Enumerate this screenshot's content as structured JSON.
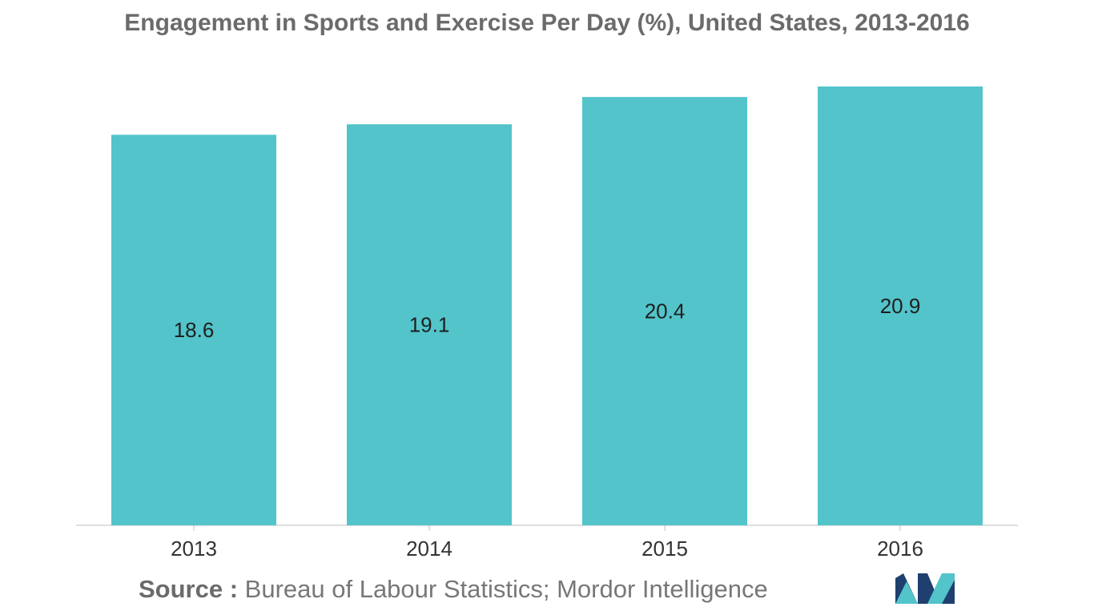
{
  "chart_data": {
    "type": "bar",
    "title": "Engagement in Sports and Exercise Per Day (%), United States, 2013-2016",
    "categories": [
      "2013",
      "2014",
      "2015",
      "2016"
    ],
    "values": [
      18.6,
      19.1,
      20.4,
      20.9
    ],
    "value_labels": [
      "18.6",
      "19.1",
      "20.4",
      "20.9"
    ],
    "xlabel": "",
    "ylabel": "",
    "ylim": [
      0,
      20.9
    ],
    "grid": false,
    "legend": "none",
    "colors": {
      "bar": "#52c4ca",
      "axis": "#bfbfbf"
    }
  },
  "source": {
    "prefix": "Source :",
    "text": "Bureau of Labour Statistics; Mordor Intelligence"
  },
  "logo": {
    "icon": "mordor-intelligence-logo",
    "colors": [
      "#1f3f6e",
      "#52c4ca"
    ]
  }
}
